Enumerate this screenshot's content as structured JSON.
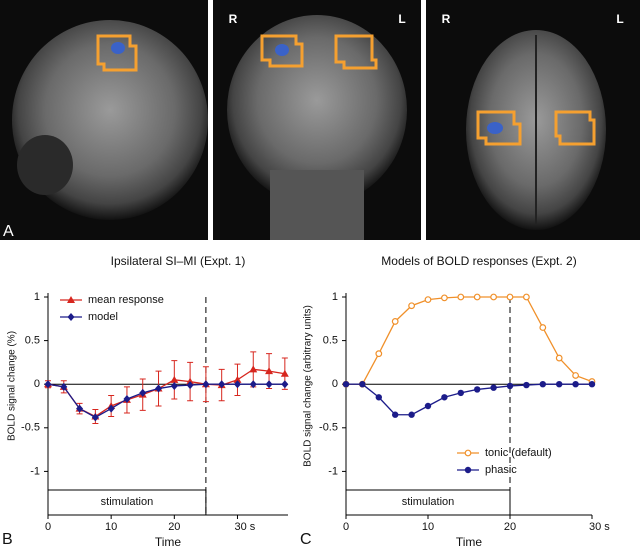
{
  "figure": {
    "panel_labels": [
      "A",
      "B",
      "C"
    ],
    "image_labels": [
      "R",
      "L",
      "R",
      "L"
    ]
  },
  "chart_data": [
    {
      "type": "line",
      "title": "Ipsilateral SI–MI (Expt. 1)",
      "xlabel": "Time",
      "ylabel": "BOLD signal change (%)",
      "xlim": [
        0,
        38
      ],
      "ylim": [
        -1.5,
        1
      ],
      "xticks": [
        0,
        10,
        20,
        {
          "value": 30,
          "label": "30 s"
        }
      ],
      "yticks": [
        -1,
        -0.5,
        0,
        0.5,
        1
      ],
      "x": [
        0,
        2.5,
        5,
        7.5,
        10,
        12.5,
        15,
        17.5,
        20,
        22.5,
        25,
        27.5,
        30,
        32.5,
        35,
        37.5
      ],
      "series": [
        {
          "name": "mean response",
          "color": "#d7261e",
          "marker": "triangle",
          "values": [
            0,
            -0.03,
            -0.28,
            -0.37,
            -0.25,
            -0.18,
            -0.12,
            -0.05,
            0.05,
            0.03,
            0,
            -0.01,
            0.05,
            0.17,
            0.15,
            0.12
          ],
          "errors": [
            0.04,
            0.07,
            0.06,
            0.08,
            0.12,
            0.15,
            0.18,
            0.2,
            0.22,
            0.22,
            0.2,
            0.18,
            0.18,
            0.2,
            0.2,
            0.18
          ]
        },
        {
          "name": "model",
          "color": "#1c1c8a",
          "marker": "diamond",
          "values": [
            0,
            -0.03,
            -0.28,
            -0.38,
            -0.28,
            -0.17,
            -0.1,
            -0.05,
            -0.02,
            -0.01,
            0,
            0,
            0,
            0,
            0,
            0
          ]
        }
      ],
      "stimulation": {
        "label": "stimulation",
        "range": [
          0,
          25
        ]
      },
      "legend": "upper left"
    },
    {
      "type": "line",
      "title": "Models of BOLD responses (Expt. 2)",
      "xlabel": "Time",
      "ylabel": "BOLD signal change (arbitrary units)",
      "xlim": [
        0,
        30
      ],
      "ylim": [
        -1.5,
        1
      ],
      "xticks": [
        0,
        10,
        20,
        {
          "value": 30,
          "label": "30 s"
        }
      ],
      "yticks": [
        -1,
        -0.5,
        0,
        0.5,
        1
      ],
      "x": [
        0,
        2,
        4,
        6,
        8,
        10,
        12,
        14,
        16,
        18,
        20,
        22,
        24,
        26,
        28,
        30
      ],
      "series": [
        {
          "name": "tonic (default)",
          "color": "#f0902a",
          "marker": "open-circle",
          "values": [
            0,
            0,
            0.35,
            0.72,
            0.9,
            0.97,
            0.99,
            1,
            1,
            1,
            1,
            1,
            0.65,
            0.3,
            0.1,
            0.03
          ]
        },
        {
          "name": "phasic",
          "color": "#1c1c8a",
          "marker": "circle",
          "values": [
            0,
            0,
            -0.15,
            -0.35,
            -0.35,
            -0.25,
            -0.15,
            -0.1,
            -0.06,
            -0.04,
            -0.02,
            -0.01,
            0,
            0,
            0,
            0
          ]
        }
      ],
      "stimulation": {
        "label": "stimulation",
        "range": [
          0,
          20
        ]
      },
      "legend": "lower right"
    }
  ]
}
